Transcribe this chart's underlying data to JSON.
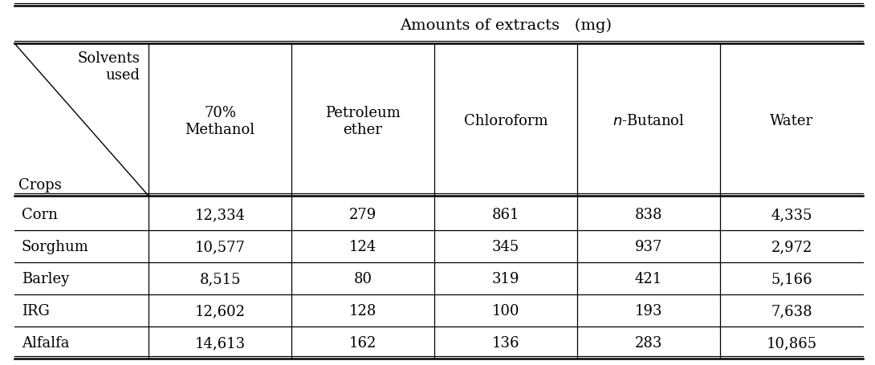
{
  "title": "Amounts of extracts   (mg)",
  "col_headers": [
    "70%\nMethanol",
    "Petroleum\nether",
    "Chloroform",
    "n-Butanol",
    "Water"
  ],
  "row_headers": [
    "Corn",
    "Sorghum",
    "Barley",
    "IRG",
    "Alfalfa"
  ],
  "corner_top": "Solvents\nused",
  "corner_bottom": "Crops",
  "data": [
    [
      "12,334",
      "279",
      "861",
      "838",
      "4,335"
    ],
    [
      "10,577",
      "124",
      "345",
      "937",
      "2,972"
    ],
    [
      "8,515",
      "80",
      "319",
      "421",
      "5,166"
    ],
    [
      "12,602",
      "128",
      "100",
      "193",
      "7,638"
    ],
    [
      "14,613",
      "162",
      "136",
      "283",
      "10,865"
    ]
  ],
  "bg_color": "white",
  "text_color": "black",
  "line_color": "black",
  "font_size": 13,
  "header_font_size": 13,
  "title_font_size": 14
}
